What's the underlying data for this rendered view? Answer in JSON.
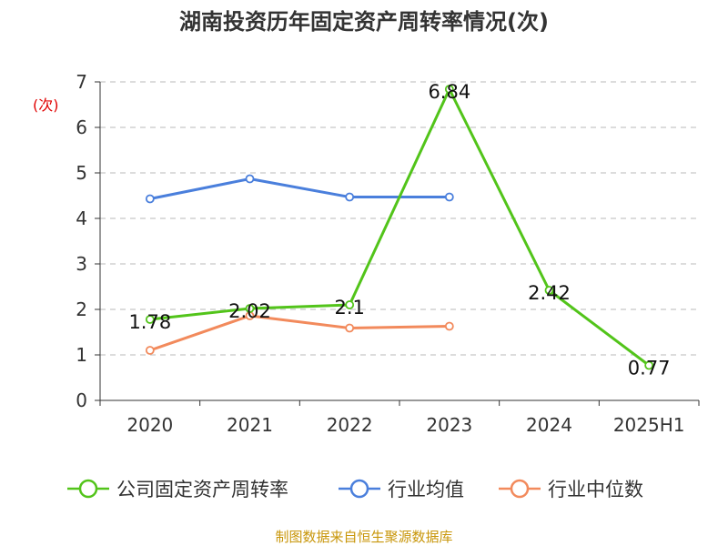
{
  "chart_data": {
    "type": "line",
    "title": "湖南投资历年固定资产周转率情况(次)",
    "ylabel": "(次)",
    "categories": [
      "2020",
      "2021",
      "2022",
      "2023",
      "2024",
      "2025H1"
    ],
    "ylim": [
      0,
      7
    ],
    "yticks": [
      "0",
      "1",
      "2",
      "3",
      "4",
      "5",
      "6",
      "7"
    ],
    "grid": true,
    "legend_position": "bottom",
    "series": [
      {
        "name": "公司固定资产周转率",
        "color": "#52c41a",
        "values": [
          1.78,
          2.02,
          2.1,
          6.84,
          2.42,
          0.77
        ],
        "labels": [
          "1.78",
          "2.02",
          "2.1",
          "6.84",
          "2.42",
          "0.77"
        ]
      },
      {
        "name": "行业均值",
        "color": "#4a7fdc",
        "values": [
          4.43,
          4.87,
          4.47,
          4.47,
          null,
          null
        ]
      },
      {
        "name": "行业中位数",
        "color": "#f28a5c",
        "values": [
          1.1,
          1.86,
          1.59,
          1.63,
          null,
          null
        ]
      }
    ]
  },
  "source": "制图数据来自恒生聚源数据库"
}
